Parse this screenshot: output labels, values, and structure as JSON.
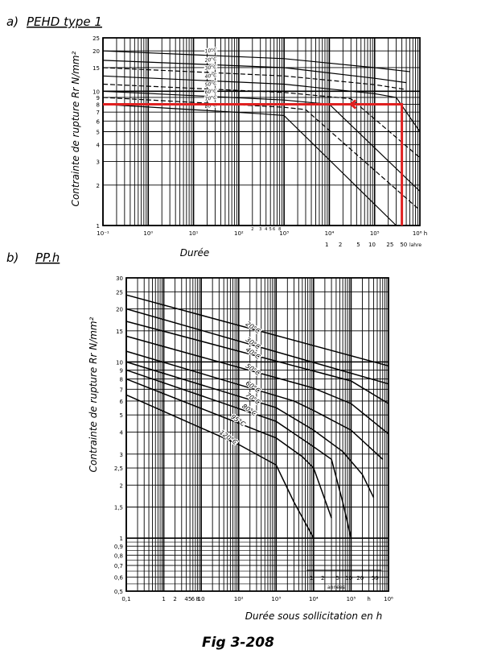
{
  "chart_data": [
    {
      "type": "line",
      "panel_label": "a)",
      "title": "PEHD type 1",
      "ylabel": "Contrainte de rupture Rr N/mm²",
      "xlabel": "Durée",
      "x_scale": "log",
      "y_scale": "log",
      "xlim": [
        0.1,
        1000000
      ],
      "ylim": [
        1,
        25
      ],
      "x_ticks": [
        {
          "v": 0.1,
          "label": "10⁻¹"
        },
        {
          "v": 1,
          "label": "10⁰"
        },
        {
          "v": 10,
          "label": "10¹"
        },
        {
          "v": 100,
          "label": "10²"
        },
        {
          "v": 1000,
          "label": "10³"
        },
        {
          "v": 10000,
          "label": "10⁴"
        },
        {
          "v": 100000,
          "label": "10⁵"
        },
        {
          "v": 1000000,
          "label": "10⁶ h"
        }
      ],
      "x_extra_ticks": [
        {
          "v": 200,
          "label": "2"
        },
        {
          "v": 300,
          "label": "3"
        },
        {
          "v": 400,
          "label": "4"
        },
        {
          "v": 500,
          "label": "5"
        },
        {
          "v": 600,
          "label": "6"
        },
        {
          "v": 800,
          "label": "8"
        }
      ],
      "years_ticks": [
        {
          "v": 8760,
          "label": "1"
        },
        {
          "v": 17520,
          "label": "2"
        },
        {
          "v": 43800,
          "label": "5"
        },
        {
          "v": 87600,
          "label": "10"
        },
        {
          "v": 219000,
          "label": "25"
        },
        {
          "v": 438000,
          "label": "50"
        }
      ],
      "years_unit": "lahre",
      "y_ticks": [
        1,
        2,
        3,
        4,
        5,
        6,
        7,
        8,
        9,
        10,
        15,
        20,
        25
      ],
      "grid": true,
      "series": [
        {
          "name": "10°C",
          "style": "solid",
          "x": [
            0.1,
            1000,
            100000,
            600000
          ],
          "y": [
            20,
            17.5,
            15,
            14
          ]
        },
        {
          "name": "20°C",
          "style": "solid",
          "x": [
            0.1,
            1000,
            100000,
            500000
          ],
          "y": [
            17,
            15,
            12.5,
            11.6
          ]
        },
        {
          "name": "30°C",
          "style": "dashed",
          "x": [
            0.1,
            1000,
            100000,
            500000
          ],
          "y": [
            15,
            13,
            11.2,
            10.3
          ]
        },
        {
          "name": "40°C",
          "style": "solid",
          "x": [
            0.1,
            1000,
            100000,
            300000,
            1000000
          ],
          "y": [
            13,
            11.3,
            9.6,
            9.0,
            5.0
          ]
        },
        {
          "name": "50°C",
          "style": "dashed",
          "x": [
            0.1,
            1000,
            30000,
            1000000
          ],
          "y": [
            11.3,
            9.8,
            8.8,
            3.2
          ]
        },
        {
          "name": "60°C",
          "style": "solid",
          "x": [
            0.1,
            1000,
            10000,
            1000000
          ],
          "y": [
            10.0,
            8.6,
            8.0,
            1.8
          ]
        },
        {
          "name": "70°C",
          "style": "dashed",
          "x": [
            0.1,
            1000,
            3000,
            1000000
          ],
          "y": [
            9.0,
            7.6,
            7.3,
            1.3
          ]
        },
        {
          "name": "80°C",
          "style": "solid",
          "x": [
            0.1,
            300,
            1000,
            300000
          ],
          "y": [
            8.0,
            6.8,
            6.6,
            1.0
          ]
        }
      ],
      "annotation_path": {
        "color": "#e02020",
        "x": [
          0.1,
          400000,
          400000
        ],
        "y": [
          8,
          8,
          1
        ]
      }
    },
    {
      "type": "line",
      "panel_label": "b)",
      "title": "PP.h",
      "ylabel": "Contrainte de rupture Rr N/mm²",
      "xlabel": "Durée sous sollicitation en h",
      "x_scale": "log",
      "y_scale": "log",
      "xlim": [
        0.1,
        1000000
      ],
      "ylim": [
        0.5,
        30
      ],
      "x_ticks": [
        {
          "v": 0.1,
          "label": "0,1"
        },
        {
          "v": 1,
          "label": "1"
        },
        {
          "v": 2,
          "label": "2"
        },
        {
          "v": 4,
          "label": "4"
        },
        {
          "v": 5,
          "label": "5"
        },
        {
          "v": 6,
          "label": "6"
        },
        {
          "v": 8,
          "label": "8"
        },
        {
          "v": 10,
          "label": "10"
        },
        {
          "v": 100,
          "label": "10²"
        },
        {
          "v": 1000,
          "label": "10³"
        },
        {
          "v": 10000,
          "label": "10⁴"
        },
        {
          "v": 100000,
          "label": "10⁵"
        },
        {
          "v": 1000000,
          "label": "10⁶"
        }
      ],
      "x_unit_label": "h",
      "years_ticks": [
        {
          "v": 8760,
          "label": "1"
        },
        {
          "v": 17520,
          "label": "2"
        },
        {
          "v": 43800,
          "label": "5"
        },
        {
          "v": 87600,
          "label": "10"
        },
        {
          "v": 175200,
          "label": "20"
        },
        {
          "v": 438000,
          "label": "50"
        }
      ],
      "years_unit": "années",
      "y_ticks": [
        {
          "v": 0.5,
          "label": "0,5"
        },
        {
          "v": 0.6,
          "label": "0,6"
        },
        {
          "v": 0.7,
          "label": "0,7"
        },
        {
          "v": 0.8,
          "label": "0,8"
        },
        {
          "v": 0.9,
          "label": "0,9"
        },
        {
          "v": 1,
          "label": "1"
        },
        {
          "v": 1.5,
          "label": "1,5"
        },
        {
          "v": 2,
          "label": "2"
        },
        {
          "v": 2.5,
          "label": "2,5"
        },
        {
          "v": 3,
          "label": "3"
        },
        {
          "v": 4,
          "label": "4"
        },
        {
          "v": 5,
          "label": "5"
        },
        {
          "v": 6,
          "label": "6"
        },
        {
          "v": 7,
          "label": "7"
        },
        {
          "v": 8,
          "label": "8"
        },
        {
          "v": 9,
          "label": "9"
        },
        {
          "v": 10,
          "label": "10"
        },
        {
          "v": 15,
          "label": "15"
        },
        {
          "v": 20,
          "label": "20"
        },
        {
          "v": 25,
          "label": "25"
        },
        {
          "v": 30,
          "label": "30"
        }
      ],
      "grid": true,
      "series": [
        {
          "name": "20°C",
          "x": [
            0.1,
            1000000
          ],
          "y": [
            24,
            9.5
          ]
        },
        {
          "name": "30°C",
          "x": [
            0.1,
            1000000
          ],
          "y": [
            20,
            7.5
          ]
        },
        {
          "name": "40°C",
          "x": [
            0.1,
            100000,
            1000000
          ],
          "y": [
            17,
            7.8,
            5.8
          ]
        },
        {
          "name": "50°C",
          "x": [
            0.1,
            10000,
            100000,
            1000000
          ],
          "y": [
            14,
            7.1,
            5.8,
            3.9
          ]
        },
        {
          "name": "60°C",
          "x": [
            0.1,
            3000,
            10000,
            100000,
            700000
          ],
          "y": [
            11.5,
            6.0,
            5.3,
            4.1,
            2.8
          ]
        },
        {
          "name": "70°C",
          "x": [
            0.1,
            1000,
            10000,
            60000,
            200000,
            400000
          ],
          "y": [
            10.0,
            5.5,
            4.1,
            3.1,
            2.3,
            1.7
          ]
        },
        {
          "name": "80°C",
          "x": [
            0.1,
            1000,
            10000,
            30000,
            60000,
            100000
          ],
          "y": [
            9.0,
            4.6,
            3.3,
            2.8,
            1.6,
            1.0
          ]
        },
        {
          "name": "95°C",
          "x": [
            0.1,
            1000,
            5000,
            10000,
            30000
          ],
          "y": [
            8.0,
            3.7,
            2.9,
            2.5,
            1.3
          ]
        },
        {
          "name": "120°C",
          "x": [
            0.1,
            100,
            1000,
            3000,
            10000
          ],
          "y": [
            6.5,
            3.4,
            2.6,
            1.6,
            1.0
          ]
        }
      ]
    }
  ],
  "figure_caption": "Fig 3-208"
}
